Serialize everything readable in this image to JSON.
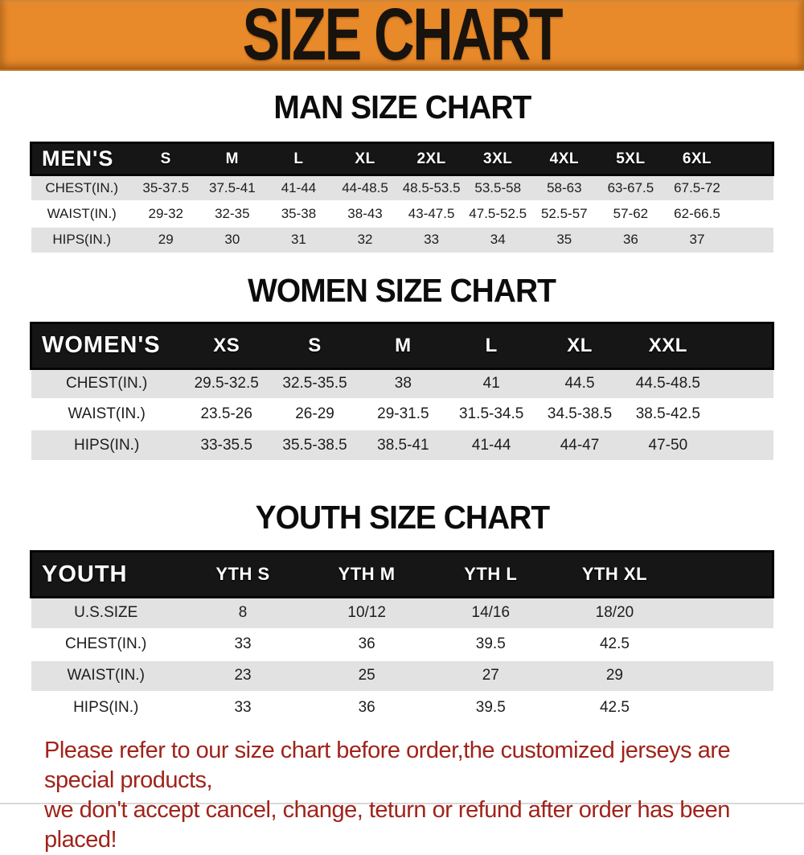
{
  "banner": {
    "title": "SIZE CHART"
  },
  "chart_data": [
    {
      "type": "table",
      "title": "MAN SIZE CHART",
      "header_label": "MEN'S",
      "columns": [
        "S",
        "M",
        "L",
        "XL",
        "2XL",
        "3XL",
        "4XL",
        "5XL",
        "6XL"
      ],
      "rows": [
        {
          "label": "CHEST(IN.)",
          "values": [
            "35-37.5",
            "37.5-41",
            "41-44",
            "44-48.5",
            "48.5-53.5",
            "53.5-58",
            "58-63",
            "63-67.5",
            "67.5-72"
          ]
        },
        {
          "label": "WAIST(IN.)",
          "values": [
            "29-32",
            "32-35",
            "35-38",
            "38-43",
            "43-47.5",
            "47.5-52.5",
            "52.5-57",
            "57-62",
            "62-66.5"
          ]
        },
        {
          "label": "HIPS(IN.)",
          "values": [
            "29",
            "30",
            "31",
            "32",
            "33",
            "34",
            "35",
            "36",
            "37"
          ]
        }
      ]
    },
    {
      "type": "table",
      "title": "WOMEN SIZE CHART",
      "header_label": "WOMEN'S",
      "columns": [
        "XS",
        "S",
        "M",
        "L",
        "XL",
        "XXL"
      ],
      "rows": [
        {
          "label": "CHEST(IN.)",
          "values": [
            "29.5-32.5",
            "32.5-35.5",
            "38",
            "41",
            "44.5",
            "44.5-48.5"
          ]
        },
        {
          "label": "WAIST(IN.)",
          "values": [
            "23.5-26",
            "26-29",
            "29-31.5",
            "31.5-34.5",
            "34.5-38.5",
            "38.5-42.5"
          ]
        },
        {
          "label": "HIPS(IN.)",
          "values": [
            "33-35.5",
            "35.5-38.5",
            "38.5-41",
            "41-44",
            "44-47",
            "47-50"
          ]
        }
      ]
    },
    {
      "type": "table",
      "title": "YOUTH SIZE CHART",
      "header_label": "YOUTH",
      "columns": [
        "YTH S",
        "YTH M",
        "YTH L",
        "YTH XL"
      ],
      "rows": [
        {
          "label": "U.S.SIZE",
          "values": [
            "8",
            "10/12",
            "14/16",
            "18/20"
          ]
        },
        {
          "label": "CHEST(IN.)",
          "values": [
            "33",
            "36",
            "39.5",
            "42.5"
          ]
        },
        {
          "label": "WAIST(IN.)",
          "values": [
            "23",
            "25",
            "27",
            "29"
          ]
        },
        {
          "label": "HIPS(IN.)",
          "values": [
            "33",
            "36",
            "39.5",
            "42.5"
          ]
        }
      ]
    }
  ],
  "footer": {
    "line1": "Please refer to our size chart before order,the customized jerseys are special products,",
    "line2": "we don't accept cancel, change, teturn or refund after order has been placed!"
  },
  "colors": {
    "banner_orange": "#e8892a",
    "header_black": "#161616",
    "row_gray": "#e2e2e2",
    "text_dark": "#1d1d1d",
    "footer_red": "#a0231a"
  }
}
